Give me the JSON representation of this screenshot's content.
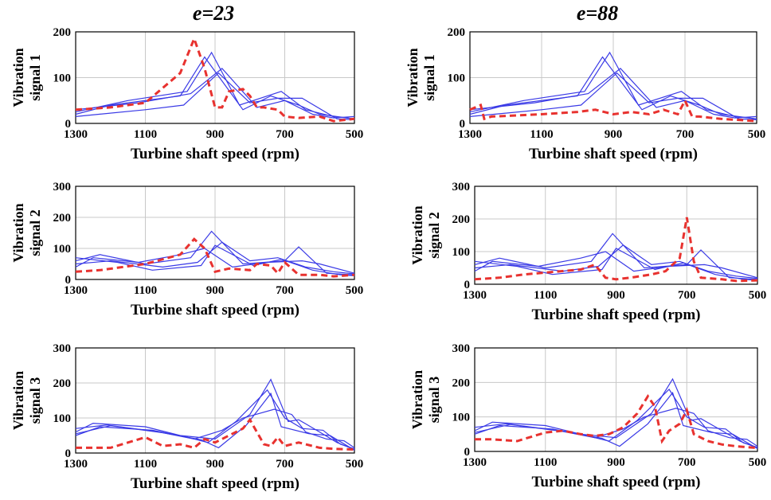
{
  "column_titles": [
    "e=23",
    "e=88"
  ],
  "colors": {
    "reference": "#3a3ae6",
    "highlight": "#e8322f",
    "grid": "#c8c8c8",
    "axis": "#000000"
  },
  "chart_data": [
    {
      "type": "line",
      "column_title": "e=23",
      "xlabel": "Turbine shaft speed (rpm)",
      "ylabel": [
        "Vibration",
        "signal 1"
      ],
      "xlim": [
        1300,
        500
      ],
      "xticks": [
        1300,
        1100,
        900,
        700,
        500
      ],
      "ylim": [
        0,
        200
      ],
      "yticks": [
        0,
        100,
        200
      ],
      "grid": true,
      "reference_series": [
        {
          "x": [
            1300,
            1200,
            1000,
            930,
            820,
            740,
            660,
            600,
            500
          ],
          "y": [
            20,
            40,
            60,
            145,
            30,
            60,
            40,
            20,
            10
          ]
        },
        {
          "x": [
            1300,
            1150,
            980,
            910,
            830,
            710,
            640,
            560,
            500
          ],
          "y": [
            25,
            50,
            70,
            155,
            40,
            70,
            30,
            15,
            10
          ]
        },
        {
          "x": [
            1300,
            1100,
            990,
            890,
            800,
            720,
            650,
            550,
            500
          ],
          "y": [
            15,
            30,
            40,
            110,
            45,
            55,
            55,
            10,
            8
          ]
        },
        {
          "x": [
            1300,
            1120,
            970,
            880,
            780,
            700,
            620,
            560,
            500
          ],
          "y": [
            30,
            45,
            65,
            120,
            35,
            50,
            20,
            12,
            15
          ]
        }
      ],
      "highlight_series": {
        "x": [
          1300,
          1200,
          1100,
          1000,
          960,
          930,
          900,
          880,
          860,
          820,
          800,
          780,
          760,
          720,
          700,
          660,
          600,
          560,
          500
        ],
        "y": [
          30,
          35,
          45,
          110,
          185,
          120,
          35,
          35,
          70,
          75,
          60,
          35,
          35,
          30,
          15,
          12,
          15,
          5,
          10
        ]
      }
    },
    {
      "type": "line",
      "column_title": "e=88",
      "xlabel": "Turbine shaft speed (rpm)",
      "ylabel": [
        "Vibration",
        "signal 1"
      ],
      "xlim": [
        1300,
        500
      ],
      "xticks": [
        1300,
        1100,
        900,
        700,
        500
      ],
      "ylim": [
        0,
        200
      ],
      "yticks": [
        0,
        100,
        200
      ],
      "grid": true,
      "reference_series": [
        {
          "x": [
            1300,
            1200,
            1000,
            930,
            820,
            740,
            660,
            600,
            500
          ],
          "y": [
            20,
            40,
            60,
            145,
            30,
            60,
            40,
            20,
            10
          ]
        },
        {
          "x": [
            1300,
            1150,
            980,
            910,
            830,
            710,
            640,
            560,
            500
          ],
          "y": [
            25,
            50,
            70,
            155,
            40,
            70,
            30,
            15,
            10
          ]
        },
        {
          "x": [
            1300,
            1100,
            990,
            890,
            800,
            720,
            650,
            550,
            500
          ],
          "y": [
            15,
            30,
            40,
            110,
            45,
            55,
            55,
            10,
            8
          ]
        },
        {
          "x": [
            1300,
            1120,
            970,
            880,
            780,
            700,
            620,
            560,
            500
          ],
          "y": [
            30,
            45,
            65,
            120,
            35,
            50,
            20,
            12,
            15
          ]
        }
      ],
      "highlight_series": {
        "x": [
          1300,
          1270,
          1260,
          1240,
          1100,
          1000,
          950,
          900,
          850,
          800,
          760,
          720,
          700,
          680,
          660,
          600,
          560,
          500
        ],
        "y": [
          30,
          40,
          10,
          15,
          20,
          25,
          30,
          20,
          25,
          20,
          30,
          20,
          50,
          15,
          15,
          10,
          8,
          5
        ]
      }
    },
    {
      "type": "line",
      "column_title": "e=23",
      "xlabel": "Turbine shaft speed (rpm)",
      "ylabel": [
        "Vibration",
        "signal 2"
      ],
      "xlim": [
        1300,
        500
      ],
      "xticks": [
        1300,
        1100,
        900,
        700,
        500
      ],
      "ylim": [
        0,
        300
      ],
      "yticks": [
        0,
        100,
        200,
        300
      ],
      "grid": true,
      "reference_series": [
        {
          "x": [
            1300,
            1230,
            1100,
            970,
            910,
            820,
            700,
            660,
            580,
            500
          ],
          "y": [
            60,
            80,
            50,
            70,
            155,
            50,
            60,
            105,
            20,
            15
          ]
        },
        {
          "x": [
            1300,
            1200,
            1050,
            950,
            880,
            800,
            720,
            640,
            560,
            500
          ],
          "y": [
            50,
            60,
            40,
            55,
            120,
            60,
            70,
            40,
            25,
            18
          ]
        },
        {
          "x": [
            1300,
            1180,
            1080,
            940,
            900,
            790,
            710,
            620,
            540,
            500
          ],
          "y": [
            70,
            55,
            30,
            45,
            110,
            45,
            65,
            30,
            15,
            12
          ]
        },
        {
          "x": [
            1300,
            1250,
            1120,
            1000,
            930,
            850,
            750,
            650,
            600,
            500
          ],
          "y": [
            40,
            70,
            55,
            80,
            100,
            40,
            55,
            60,
            50,
            20
          ]
        }
      ],
      "highlight_series": {
        "x": [
          1300,
          1230,
          1100,
          1000,
          960,
          930,
          900,
          860,
          800,
          780,
          740,
          720,
          700,
          660,
          600,
          560,
          500
        ],
        "y": [
          25,
          30,
          50,
          80,
          130,
          100,
          25,
          35,
          30,
          50,
          45,
          20,
          55,
          15,
          15,
          10,
          15
        ]
      }
    },
    {
      "type": "line",
      "column_title": "e=88",
      "xlabel": "Turbine shaft speed (rpm)",
      "ylabel": [
        "Vibration",
        "signal 2"
      ],
      "xlim": [
        1300,
        500
      ],
      "xticks": [
        1300,
        1100,
        900,
        700,
        500
      ],
      "ylim": [
        0,
        300
      ],
      "yticks": [
        0,
        100,
        200,
        300
      ],
      "grid": true,
      "reference_series": [
        {
          "x": [
            1300,
            1230,
            1100,
            970,
            910,
            820,
            700,
            660,
            580,
            500
          ],
          "y": [
            60,
            80,
            50,
            70,
            155,
            50,
            60,
            105,
            20,
            15
          ]
        },
        {
          "x": [
            1300,
            1200,
            1050,
            950,
            880,
            800,
            720,
            640,
            560,
            500
          ],
          "y": [
            50,
            60,
            40,
            55,
            120,
            60,
            70,
            40,
            25,
            18
          ]
        },
        {
          "x": [
            1300,
            1180,
            1080,
            940,
            900,
            790,
            710,
            620,
            540,
            500
          ],
          "y": [
            70,
            55,
            30,
            45,
            110,
            45,
            65,
            30,
            15,
            12
          ]
        },
        {
          "x": [
            1300,
            1250,
            1120,
            1000,
            930,
            850,
            750,
            650,
            600,
            500
          ],
          "y": [
            40,
            70,
            55,
            80,
            100,
            40,
            55,
            60,
            50,
            20
          ]
        }
      ],
      "highlight_series": {
        "x": [
          1300,
          1230,
          1160,
          1000,
          960,
          930,
          900,
          860,
          800,
          760,
          720,
          700,
          680,
          660,
          600,
          560,
          500
        ],
        "y": [
          15,
          20,
          30,
          45,
          60,
          20,
          15,
          20,
          30,
          40,
          80,
          205,
          70,
          20,
          15,
          10,
          12
        ]
      }
    },
    {
      "type": "line",
      "column_title": "e=23",
      "xlabel": "Turbine shaft speed (rpm)",
      "ylabel": [
        "Vibration",
        "signal 3"
      ],
      "xlim": [
        1300,
        500
      ],
      "xticks": [
        1300,
        1100,
        900,
        700,
        500
      ],
      "ylim": [
        0,
        300
      ],
      "yticks": [
        0,
        100,
        200,
        300
      ],
      "grid": true,
      "reference_series": [
        {
          "x": [
            1300,
            1250,
            1100,
            1000,
            900,
            800,
            740,
            690,
            660,
            600,
            550,
            500
          ],
          "y": [
            60,
            85,
            75,
            50,
            40,
            110,
            210,
            90,
            95,
            60,
            30,
            10
          ]
        },
        {
          "x": [
            1300,
            1230,
            1080,
            980,
            920,
            840,
            750,
            700,
            650,
            590,
            540,
            500
          ],
          "y": [
            50,
            75,
            65,
            45,
            30,
            90,
            180,
            100,
            70,
            65,
            25,
            12
          ]
        },
        {
          "x": [
            1300,
            1210,
            1060,
            960,
            880,
            820,
            730,
            680,
            640,
            580,
            530,
            500
          ],
          "y": [
            70,
            80,
            60,
            40,
            65,
            100,
            125,
            110,
            60,
            40,
            35,
            15
          ]
        },
        {
          "x": [
            1300,
            1200,
            1050,
            940,
            890,
            810,
            740,
            710,
            630,
            570,
            520,
            500
          ],
          "y": [
            55,
            78,
            58,
            38,
            15,
            80,
            170,
            75,
            55,
            50,
            20,
            8
          ]
        }
      ],
      "highlight_series": {
        "x": [
          1300,
          1250,
          1200,
          1150,
          1100,
          1050,
          1000,
          960,
          930,
          900,
          860,
          820,
          800,
          780,
          760,
          740,
          720,
          700,
          660,
          600,
          560,
          500
        ],
        "y": [
          15,
          15,
          15,
          30,
          45,
          20,
          25,
          15,
          40,
          30,
          50,
          70,
          95,
          60,
          25,
          20,
          45,
          20,
          30,
          15,
          12,
          10
        ]
      }
    },
    {
      "type": "line",
      "column_title": "e=88",
      "xlabel": "Turbine shaft speed (rpm)",
      "ylabel": [
        "Vibration",
        "signal 3"
      ],
      "xlim": [
        1300,
        500
      ],
      "xticks": [
        1300,
        1100,
        900,
        700,
        500
      ],
      "ylim": [
        0,
        300
      ],
      "yticks": [
        0,
        100,
        200,
        300
      ],
      "grid": true,
      "reference_series": [
        {
          "x": [
            1300,
            1250,
            1100,
            1000,
            900,
            800,
            740,
            690,
            660,
            600,
            550,
            500
          ],
          "y": [
            60,
            85,
            75,
            50,
            40,
            110,
            210,
            90,
            95,
            60,
            30,
            10
          ]
        },
        {
          "x": [
            1300,
            1230,
            1080,
            980,
            920,
            840,
            750,
            700,
            650,
            590,
            540,
            500
          ],
          "y": [
            50,
            75,
            65,
            45,
            30,
            90,
            180,
            100,
            70,
            65,
            25,
            12
          ]
        },
        {
          "x": [
            1300,
            1210,
            1060,
            960,
            880,
            820,
            730,
            680,
            640,
            580,
            530,
            500
          ],
          "y": [
            70,
            80,
            60,
            40,
            65,
            100,
            125,
            110,
            60,
            40,
            35,
            15
          ]
        },
        {
          "x": [
            1300,
            1200,
            1050,
            940,
            890,
            810,
            740,
            710,
            630,
            570,
            520,
            500
          ],
          "y": [
            55,
            78,
            58,
            38,
            15,
            80,
            170,
            75,
            55,
            50,
            20,
            8
          ]
        }
      ],
      "highlight_series": {
        "x": [
          1300,
          1250,
          1180,
          1100,
          1050,
          1000,
          960,
          920,
          880,
          840,
          810,
          790,
          770,
          750,
          720,
          700,
          680,
          640,
          600,
          560,
          500
        ],
        "y": [
          35,
          35,
          30,
          55,
          60,
          50,
          45,
          50,
          70,
          110,
          160,
          130,
          30,
          60,
          80,
          120,
          50,
          30,
          20,
          15,
          10
        ]
      }
    }
  ]
}
